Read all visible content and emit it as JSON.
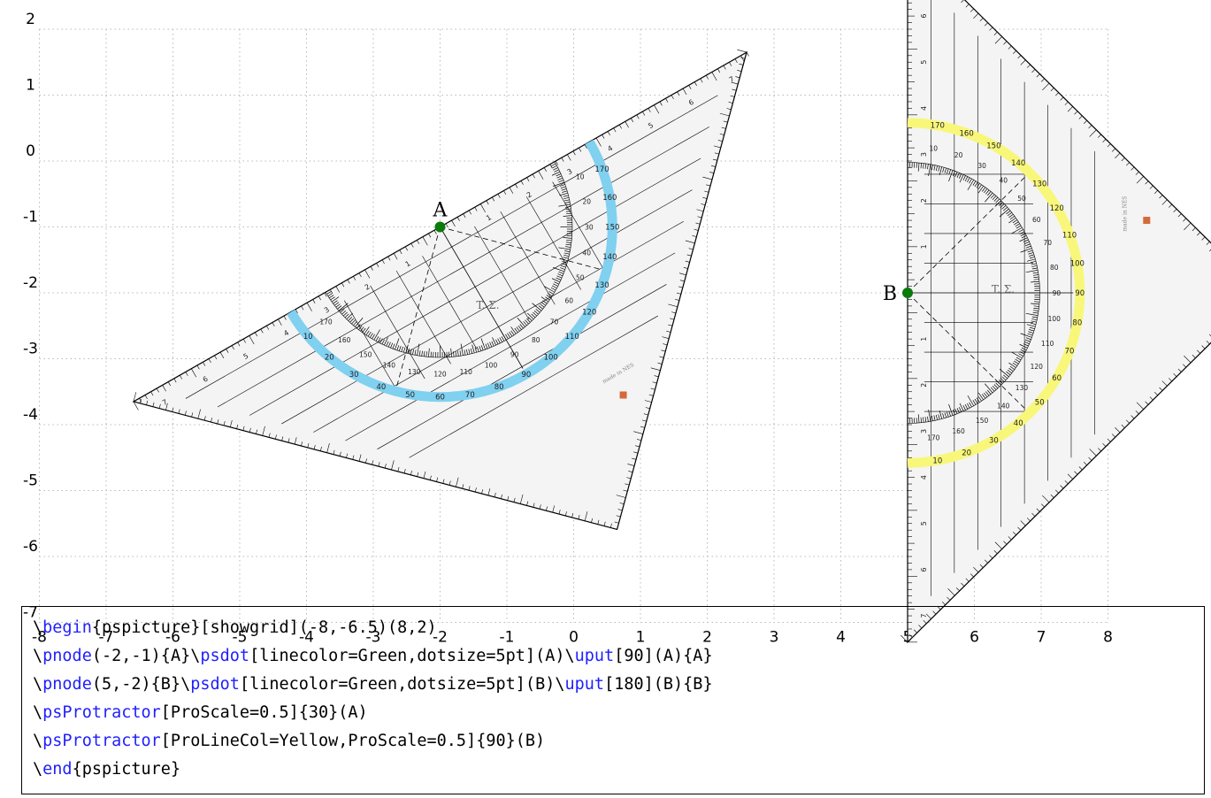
{
  "grid": {
    "x_ticks": [
      "-8",
      "-7",
      "-6",
      "-5",
      "-4",
      "-3",
      "-2",
      "-1",
      "0",
      "1",
      "2",
      "3",
      "4",
      "5",
      "6",
      "7",
      "8"
    ],
    "y_ticks": [
      "2",
      "1",
      "0",
      "-1",
      "-2",
      "-3",
      "-4",
      "-5",
      "-6",
      "-7"
    ]
  },
  "points": [
    {
      "label": "A",
      "x": -2,
      "y": -1,
      "color": "#0a7a0a"
    },
    {
      "label": "B",
      "x": 5,
      "y": -2,
      "color": "#0a7a0a"
    }
  ],
  "protractors": [
    {
      "id": "A",
      "angle": 30,
      "scale": 0.5,
      "arc_color": "#80d0f0",
      "deg_labels": [
        "10",
        "20",
        "30",
        "40",
        "50",
        "60",
        "70",
        "80",
        "90",
        "100",
        "110",
        "120",
        "130",
        "140",
        "150",
        "160",
        "170"
      ],
      "brand": "T. Σ.",
      "made": "made in NES"
    },
    {
      "id": "B",
      "angle": 90,
      "scale": 0.5,
      "arc_color": "#f8f77a",
      "deg_labels": [
        "10",
        "20",
        "30",
        "40",
        "50",
        "60",
        "70",
        "80",
        "90",
        "100",
        "110",
        "120",
        "130",
        "140",
        "150",
        "160",
        "170"
      ],
      "brand": "T. Σ.",
      "made": "made in NES"
    }
  ],
  "ruler_numbers": [
    "1",
    "2",
    "3",
    "4",
    "5",
    "6",
    "7"
  ],
  "code": [
    [
      {
        "t": "\\",
        "k": false
      },
      {
        "t": "begin",
        "k": true
      },
      {
        "t": "{pspicture}[showgrid](-8,-6.5)(8,2)",
        "k": false
      }
    ],
    [
      {
        "t": "\\",
        "k": false
      },
      {
        "t": "pnode",
        "k": true
      },
      {
        "t": "(-2,-1){A}\\",
        "k": false
      },
      {
        "t": "psdot",
        "k": true
      },
      {
        "t": "[linecolor=Green,dotsize=5pt](A)\\",
        "k": false
      },
      {
        "t": "uput",
        "k": true
      },
      {
        "t": "[90](A){A}",
        "k": false
      }
    ],
    [
      {
        "t": "\\",
        "k": false
      },
      {
        "t": "pnode",
        "k": true
      },
      {
        "t": "(5,-2){B}\\",
        "k": false
      },
      {
        "t": "psdot",
        "k": true
      },
      {
        "t": "[linecolor=Green,dotsize=5pt](B)\\",
        "k": false
      },
      {
        "t": "uput",
        "k": true
      },
      {
        "t": "[180](B){B}",
        "k": false
      }
    ],
    [
      {
        "t": "\\",
        "k": false
      },
      {
        "t": "psProtractor",
        "k": true
      },
      {
        "t": "[ProScale=0.5]{30}(A)",
        "k": false
      }
    ],
    [
      {
        "t": "\\",
        "k": false
      },
      {
        "t": "psProtractor",
        "k": true
      },
      {
        "t": "[ProLineCol=Yellow,ProScale=0.5]{90}(B)",
        "k": false
      }
    ],
    [
      {
        "t": "\\",
        "k": false
      },
      {
        "t": "end",
        "k": true
      },
      {
        "t": "{pspicture}",
        "k": false
      }
    ]
  ]
}
